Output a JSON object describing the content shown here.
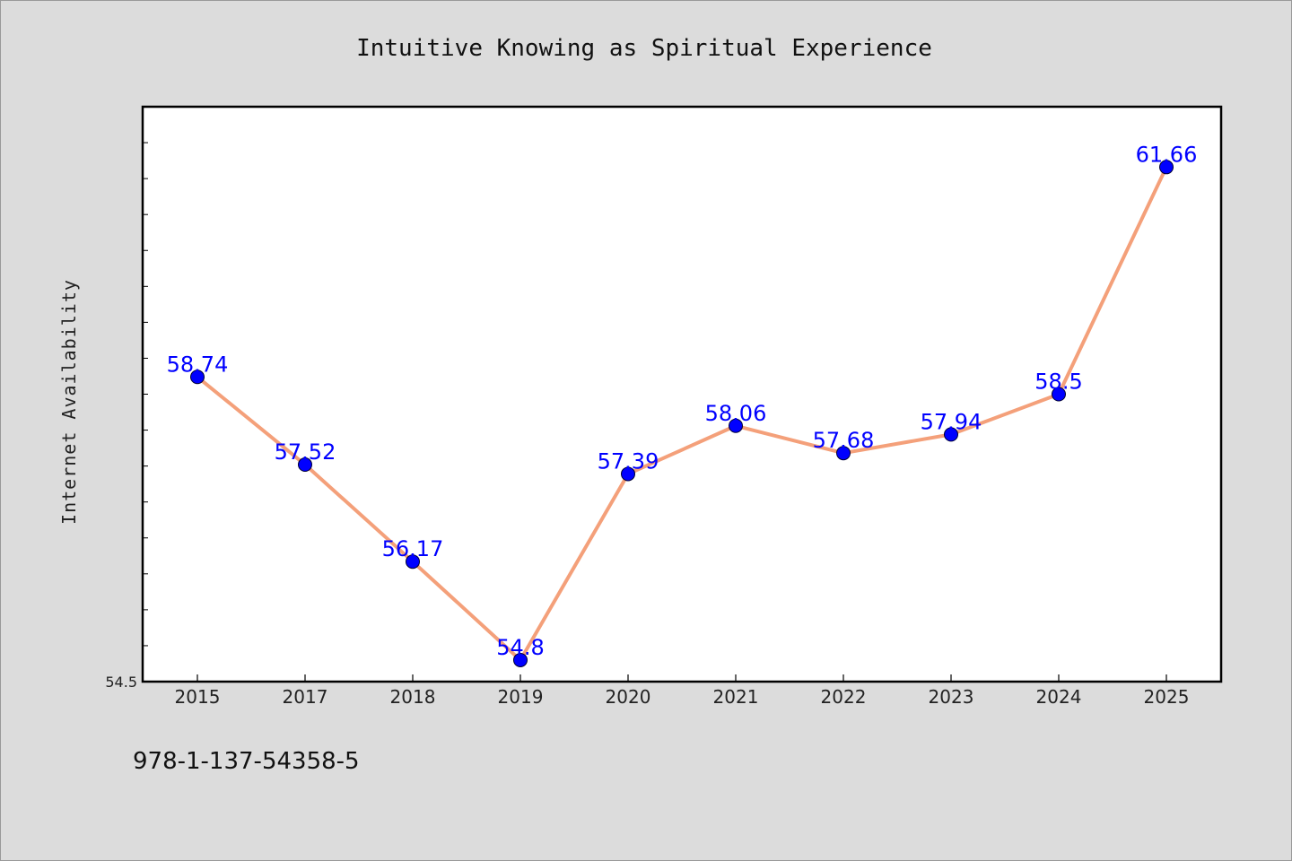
{
  "chart_data": {
    "type": "line",
    "title": "Intuitive Knowing as Spiritual Experience",
    "xlabel": "",
    "ylabel": "Internet Availability",
    "categories": [
      "2015",
      "2017",
      "2018",
      "2019",
      "2020",
      "2021",
      "2022",
      "2023",
      "2024",
      "2025"
    ],
    "series": [
      {
        "values": [
          58.74,
          57.52,
          56.17,
          54.8,
          57.39,
          58.06,
          57.68,
          57.94,
          58.5,
          61.66
        ]
      }
    ],
    "data_labels": [
      "58.74",
      "57.52",
      "56.17",
      "54.8",
      "57.39",
      "58.06",
      "57.68",
      "57.94",
      "58.5",
      "61.66"
    ],
    "ylim": [
      54.5,
      62.5
    ],
    "yticks_shown": [
      "54.5"
    ],
    "grid": false,
    "legend": "none",
    "line_color": "#f4a07a",
    "marker_color": "#0000ff",
    "label_color": "#0000ff"
  },
  "footer": {
    "isbn": "978-1-137-54358-5"
  }
}
